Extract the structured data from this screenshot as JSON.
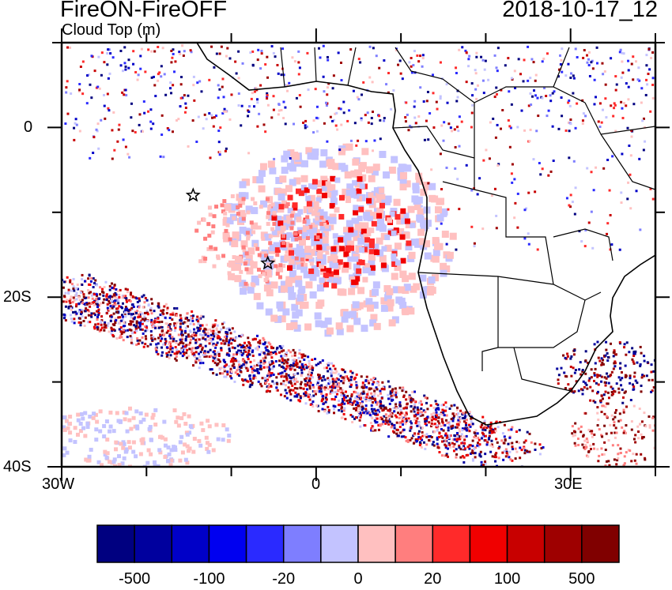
{
  "header": {
    "title": "FireON-FireOFF",
    "subtitle": "Cloud Top (m)",
    "datetime": "2018-10-17_12"
  },
  "axes": {
    "x_labels": [
      "30W",
      "0",
      "30E"
    ],
    "y_labels": [
      "0",
      "20S",
      "40S"
    ],
    "lon_range": [
      -30,
      40
    ],
    "lat_range": [
      -40,
      10
    ]
  },
  "markers": [
    {
      "name": "star",
      "lon": -14.5,
      "lat": -8
    },
    {
      "name": "star",
      "lon": -5.7,
      "lat": -16
    }
  ],
  "colorbar": {
    "colors": [
      "#000080",
      "#00009e",
      "#0000c8",
      "#0000f0",
      "#2a2aff",
      "#7e7eff",
      "#c3c3ff",
      "#ffc0c0",
      "#ff7e7e",
      "#ff2a2a",
      "#f00000",
      "#c80000",
      "#9e0000",
      "#800000"
    ],
    "labels": [
      "-500",
      "-100",
      "-20",
      "0",
      "20",
      "100",
      "500"
    ]
  }
}
